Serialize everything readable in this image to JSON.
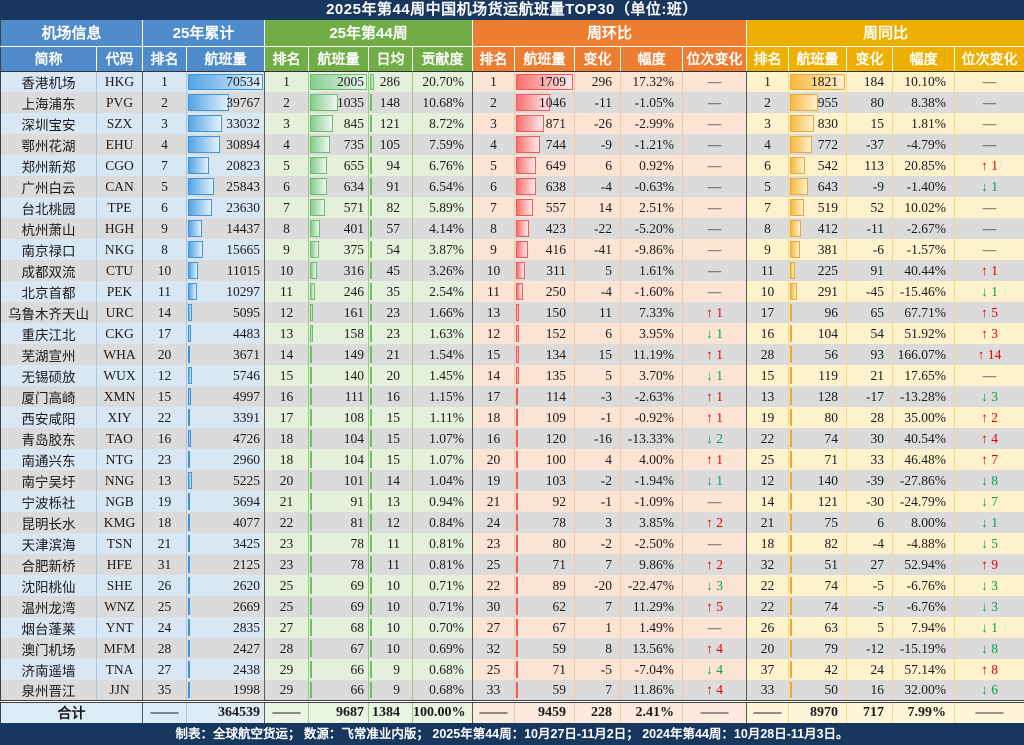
{
  "title": "2025年第44周中国机场货运航班量TOP30（单位:班）",
  "header": {
    "sections": [
      {
        "id": "airport-info",
        "label": "机场信息"
      },
      {
        "id": "ytd-2025",
        "label": "25年累计"
      },
      {
        "id": "week-44",
        "label": "25年第44周"
      },
      {
        "id": "week-over-week",
        "label": "周环比"
      },
      {
        "id": "week-over-year",
        "label": "周同比"
      }
    ],
    "columns": [
      "简称",
      "代码",
      "排名",
      "航班量",
      "排名",
      "航班量",
      "日均",
      "贡献度",
      "排名",
      "航班量",
      "变化",
      "幅度",
      "位次变化",
      "排名",
      "航班量",
      "变化",
      "幅度",
      "位次变化"
    ]
  },
  "rows": [
    {
      "name": "香港机场",
      "code": "HKG",
      "cum_rank": "1",
      "cum_vol": 70534,
      "wk_rank": "1",
      "wk_vol": 2005,
      "daily": 286,
      "contrib": "20.70%",
      "wow_rank": "1",
      "wow_vol": 1709,
      "wow_chg": "296",
      "wow_pct": "17.32%",
      "wow_move": "—",
      "yoy_rank": "1",
      "yoy_vol": 1821,
      "yoy_chg": "184",
      "yoy_pct": "10.10%",
      "yoy_move": "—"
    },
    {
      "name": "上海浦东",
      "code": "PVG",
      "cum_rank": "2",
      "cum_vol": 39767,
      "wk_rank": "2",
      "wk_vol": 1035,
      "daily": 148,
      "contrib": "10.68%",
      "wow_rank": "2",
      "wow_vol": 1046,
      "wow_chg": "-11",
      "wow_pct": "-1.05%",
      "wow_move": "—",
      "yoy_rank": "2",
      "yoy_vol": 955,
      "yoy_chg": "80",
      "yoy_pct": "8.38%",
      "yoy_move": "—"
    },
    {
      "name": "深圳宝安",
      "code": "SZX",
      "cum_rank": "3",
      "cum_vol": 33032,
      "wk_rank": "3",
      "wk_vol": 845,
      "daily": 121,
      "contrib": "8.72%",
      "wow_rank": "3",
      "wow_vol": 871,
      "wow_chg": "-26",
      "wow_pct": "-2.99%",
      "wow_move": "—",
      "yoy_rank": "3",
      "yoy_vol": 830,
      "yoy_chg": "15",
      "yoy_pct": "1.81%",
      "yoy_move": "—"
    },
    {
      "name": "鄂州花湖",
      "code": "EHU",
      "cum_rank": "4",
      "cum_vol": 30894,
      "wk_rank": "4",
      "wk_vol": 735,
      "daily": 105,
      "contrib": "7.59%",
      "wow_rank": "4",
      "wow_vol": 744,
      "wow_chg": "-9",
      "wow_pct": "-1.21%",
      "wow_move": "—",
      "yoy_rank": "4",
      "yoy_vol": 772,
      "yoy_chg": "-37",
      "yoy_pct": "-4.79%",
      "yoy_move": "—"
    },
    {
      "name": "郑州新郑",
      "code": "CGO",
      "cum_rank": "7",
      "cum_vol": 20823,
      "wk_rank": "5",
      "wk_vol": 655,
      "daily": 94,
      "contrib": "6.76%",
      "wow_rank": "5",
      "wow_vol": 649,
      "wow_chg": "6",
      "wow_pct": "0.92%",
      "wow_move": "—",
      "yoy_rank": "6",
      "yoy_vol": 542,
      "yoy_chg": "113",
      "yoy_pct": "20.85%",
      "yoy_move": "↑ 1"
    },
    {
      "name": "广州白云",
      "code": "CAN",
      "cum_rank": "5",
      "cum_vol": 25843,
      "wk_rank": "6",
      "wk_vol": 634,
      "daily": 91,
      "contrib": "6.54%",
      "wow_rank": "6",
      "wow_vol": 638,
      "wow_chg": "-4",
      "wow_pct": "-0.63%",
      "wow_move": "—",
      "yoy_rank": "5",
      "yoy_vol": 643,
      "yoy_chg": "-9",
      "yoy_pct": "-1.40%",
      "yoy_move": "↓ 1"
    },
    {
      "name": "台北桃园",
      "code": "TPE",
      "cum_rank": "6",
      "cum_vol": 23630,
      "wk_rank": "7",
      "wk_vol": 571,
      "daily": 82,
      "contrib": "5.89%",
      "wow_rank": "7",
      "wow_vol": 557,
      "wow_chg": "14",
      "wow_pct": "2.51%",
      "wow_move": "—",
      "yoy_rank": "7",
      "yoy_vol": 519,
      "yoy_chg": "52",
      "yoy_pct": "10.02%",
      "yoy_move": "—"
    },
    {
      "name": "杭州萧山",
      "code": "HGH",
      "cum_rank": "9",
      "cum_vol": 14437,
      "wk_rank": "8",
      "wk_vol": 401,
      "daily": 57,
      "contrib": "4.14%",
      "wow_rank": "8",
      "wow_vol": 423,
      "wow_chg": "-22",
      "wow_pct": "-5.20%",
      "wow_move": "—",
      "yoy_rank": "8",
      "yoy_vol": 412,
      "yoy_chg": "-11",
      "yoy_pct": "-2.67%",
      "yoy_move": "—"
    },
    {
      "name": "南京禄口",
      "code": "NKG",
      "cum_rank": "8",
      "cum_vol": 15665,
      "wk_rank": "9",
      "wk_vol": 375,
      "daily": 54,
      "contrib": "3.87%",
      "wow_rank": "9",
      "wow_vol": 416,
      "wow_chg": "-41",
      "wow_pct": "-9.86%",
      "wow_move": "—",
      "yoy_rank": "9",
      "yoy_vol": 381,
      "yoy_chg": "-6",
      "yoy_pct": "-1.57%",
      "yoy_move": "—"
    },
    {
      "name": "成都双流",
      "code": "CTU",
      "cum_rank": "10",
      "cum_vol": 11015,
      "wk_rank": "10",
      "wk_vol": 316,
      "daily": 45,
      "contrib": "3.26%",
      "wow_rank": "10",
      "wow_vol": 311,
      "wow_chg": "5",
      "wow_pct": "1.61%",
      "wow_move": "—",
      "yoy_rank": "11",
      "yoy_vol": 225,
      "yoy_chg": "91",
      "yoy_pct": "40.44%",
      "yoy_move": "↑ 1"
    },
    {
      "name": "北京首都",
      "code": "PEK",
      "cum_rank": "11",
      "cum_vol": 10297,
      "wk_rank": "11",
      "wk_vol": 246,
      "daily": 35,
      "contrib": "2.54%",
      "wow_rank": "11",
      "wow_vol": 250,
      "wow_chg": "-4",
      "wow_pct": "-1.60%",
      "wow_move": "—",
      "yoy_rank": "10",
      "yoy_vol": 291,
      "yoy_chg": "-45",
      "yoy_pct": "-15.46%",
      "yoy_move": "↓ 1"
    },
    {
      "name": "乌鲁木齐天山",
      "code": "URC",
      "cum_rank": "14",
      "cum_vol": 5095,
      "wk_rank": "12",
      "wk_vol": 161,
      "daily": 23,
      "contrib": "1.66%",
      "wow_rank": "13",
      "wow_vol": 150,
      "wow_chg": "11",
      "wow_pct": "7.33%",
      "wow_move": "↑ 1",
      "yoy_rank": "17",
      "yoy_vol": 96,
      "yoy_chg": "65",
      "yoy_pct": "67.71%",
      "yoy_move": "↑ 5"
    },
    {
      "name": "重庆江北",
      "code": "CKG",
      "cum_rank": "17",
      "cum_vol": 4483,
      "wk_rank": "13",
      "wk_vol": 158,
      "daily": 23,
      "contrib": "1.63%",
      "wow_rank": "12",
      "wow_vol": 152,
      "wow_chg": "6",
      "wow_pct": "3.95%",
      "wow_move": "↓ 1",
      "yoy_rank": "16",
      "yoy_vol": 104,
      "yoy_chg": "54",
      "yoy_pct": "51.92%",
      "yoy_move": "↑ 3"
    },
    {
      "name": "芜湖宣州",
      "code": "WHA",
      "cum_rank": "20",
      "cum_vol": 3671,
      "wk_rank": "14",
      "wk_vol": 149,
      "daily": 21,
      "contrib": "1.54%",
      "wow_rank": "15",
      "wow_vol": 134,
      "wow_chg": "15",
      "wow_pct": "11.19%",
      "wow_move": "↑ 1",
      "yoy_rank": "28",
      "yoy_vol": 56,
      "yoy_chg": "93",
      "yoy_pct": "166.07%",
      "yoy_move": "↑ 14"
    },
    {
      "name": "无锡硕放",
      "code": "WUX",
      "cum_rank": "12",
      "cum_vol": 5746,
      "wk_rank": "15",
      "wk_vol": 140,
      "daily": 20,
      "contrib": "1.45%",
      "wow_rank": "14",
      "wow_vol": 135,
      "wow_chg": "5",
      "wow_pct": "3.70%",
      "wow_move": "↓ 1",
      "yoy_rank": "15",
      "yoy_vol": 119,
      "yoy_chg": "21",
      "yoy_pct": "17.65%",
      "yoy_move": "—"
    },
    {
      "name": "厦门高崎",
      "code": "XMN",
      "cum_rank": "15",
      "cum_vol": 4997,
      "wk_rank": "16",
      "wk_vol": 111,
      "daily": 16,
      "contrib": "1.15%",
      "wow_rank": "17",
      "wow_vol": 114,
      "wow_chg": "-3",
      "wow_pct": "-2.63%",
      "wow_move": "↑ 1",
      "yoy_rank": "13",
      "yoy_vol": 128,
      "yoy_chg": "-17",
      "yoy_pct": "-13.28%",
      "yoy_move": "↓ 3"
    },
    {
      "name": "西安咸阳",
      "code": "XIY",
      "cum_rank": "22",
      "cum_vol": 3391,
      "wk_rank": "17",
      "wk_vol": 108,
      "daily": 15,
      "contrib": "1.11%",
      "wow_rank": "18",
      "wow_vol": 109,
      "wow_chg": "-1",
      "wow_pct": "-0.92%",
      "wow_move": "↑ 1",
      "yoy_rank": "19",
      "yoy_vol": 80,
      "yoy_chg": "28",
      "yoy_pct": "35.00%",
      "yoy_move": "↑ 2"
    },
    {
      "name": "青岛胶东",
      "code": "TAO",
      "cum_rank": "16",
      "cum_vol": 4726,
      "wk_rank": "18",
      "wk_vol": 104,
      "daily": 15,
      "contrib": "1.07%",
      "wow_rank": "16",
      "wow_vol": 120,
      "wow_chg": "-16",
      "wow_pct": "-13.33%",
      "wow_move": "↓ 2",
      "yoy_rank": "22",
      "yoy_vol": 74,
      "yoy_chg": "30",
      "yoy_pct": "40.54%",
      "yoy_move": "↑ 4"
    },
    {
      "name": "南通兴东",
      "code": "NTG",
      "cum_rank": "23",
      "cum_vol": 2960,
      "wk_rank": "18",
      "wk_vol": 104,
      "daily": 15,
      "contrib": "1.07%",
      "wow_rank": "20",
      "wow_vol": 100,
      "wow_chg": "4",
      "wow_pct": "4.00%",
      "wow_move": "↑ 1",
      "yoy_rank": "25",
      "yoy_vol": 71,
      "yoy_chg": "33",
      "yoy_pct": "46.48%",
      "yoy_move": "↑ 7"
    },
    {
      "name": "南宁吴圩",
      "code": "NNG",
      "cum_rank": "13",
      "cum_vol": 5225,
      "wk_rank": "20",
      "wk_vol": 101,
      "daily": 14,
      "contrib": "1.04%",
      "wow_rank": "19",
      "wow_vol": 103,
      "wow_chg": "-2",
      "wow_pct": "-1.94%",
      "wow_move": "↓ 1",
      "yoy_rank": "12",
      "yoy_vol": 140,
      "yoy_chg": "-39",
      "yoy_pct": "-27.86%",
      "yoy_move": "↓ 8"
    },
    {
      "name": "宁波栎社",
      "code": "NGB",
      "cum_rank": "19",
      "cum_vol": 3694,
      "wk_rank": "21",
      "wk_vol": 91,
      "daily": 13,
      "contrib": "0.94%",
      "wow_rank": "21",
      "wow_vol": 92,
      "wow_chg": "-1",
      "wow_pct": "-1.09%",
      "wow_move": "—",
      "yoy_rank": "14",
      "yoy_vol": 121,
      "yoy_chg": "-30",
      "yoy_pct": "-24.79%",
      "yoy_move": "↓ 7"
    },
    {
      "name": "昆明长水",
      "code": "KMG",
      "cum_rank": "18",
      "cum_vol": 4077,
      "wk_rank": "22",
      "wk_vol": 81,
      "daily": 12,
      "contrib": "0.84%",
      "wow_rank": "24",
      "wow_vol": 78,
      "wow_chg": "3",
      "wow_pct": "3.85%",
      "wow_move": "↑ 2",
      "yoy_rank": "21",
      "yoy_vol": 75,
      "yoy_chg": "6",
      "yoy_pct": "8.00%",
      "yoy_move": "↓ 1"
    },
    {
      "name": "天津滨海",
      "code": "TSN",
      "cum_rank": "21",
      "cum_vol": 3425,
      "wk_rank": "23",
      "wk_vol": 78,
      "daily": 11,
      "contrib": "0.81%",
      "wow_rank": "23",
      "wow_vol": 80,
      "wow_chg": "-2",
      "wow_pct": "-2.50%",
      "wow_move": "—",
      "yoy_rank": "18",
      "yoy_vol": 82,
      "yoy_chg": "-4",
      "yoy_pct": "-4.88%",
      "yoy_move": "↓ 5"
    },
    {
      "name": "合肥新桥",
      "code": "HFE",
      "cum_rank": "31",
      "cum_vol": 2125,
      "wk_rank": "23",
      "wk_vol": 78,
      "daily": 11,
      "contrib": "0.81%",
      "wow_rank": "25",
      "wow_vol": 71,
      "wow_chg": "7",
      "wow_pct": "9.86%",
      "wow_move": "↑ 2",
      "yoy_rank": "32",
      "yoy_vol": 51,
      "yoy_chg": "27",
      "yoy_pct": "52.94%",
      "yoy_move": "↑ 9"
    },
    {
      "name": "沈阳桃仙",
      "code": "SHE",
      "cum_rank": "26",
      "cum_vol": 2620,
      "wk_rank": "25",
      "wk_vol": 69,
      "daily": 10,
      "contrib": "0.71%",
      "wow_rank": "22",
      "wow_vol": 89,
      "wow_chg": "-20",
      "wow_pct": "-22.47%",
      "wow_move": "↓ 3",
      "yoy_rank": "22",
      "yoy_vol": 74,
      "yoy_chg": "-5",
      "yoy_pct": "-6.76%",
      "yoy_move": "↓ 3"
    },
    {
      "name": "温州龙湾",
      "code": "WNZ",
      "cum_rank": "25",
      "cum_vol": 2669,
      "wk_rank": "25",
      "wk_vol": 69,
      "daily": 10,
      "contrib": "0.71%",
      "wow_rank": "30",
      "wow_vol": 62,
      "wow_chg": "7",
      "wow_pct": "11.29%",
      "wow_move": "↑ 5",
      "yoy_rank": "22",
      "yoy_vol": 74,
      "yoy_chg": "-5",
      "yoy_pct": "-6.76%",
      "yoy_move": "↓ 3"
    },
    {
      "name": "烟台蓬莱",
      "code": "YNT",
      "cum_rank": "24",
      "cum_vol": 2835,
      "wk_rank": "27",
      "wk_vol": 68,
      "daily": 10,
      "contrib": "0.70%",
      "wow_rank": "27",
      "wow_vol": 67,
      "wow_chg": "1",
      "wow_pct": "1.49%",
      "wow_move": "—",
      "yoy_rank": "26",
      "yoy_vol": 63,
      "yoy_chg": "5",
      "yoy_pct": "7.94%",
      "yoy_move": "↓ 1"
    },
    {
      "name": "澳门机场",
      "code": "MFM",
      "cum_rank": "28",
      "cum_vol": 2427,
      "wk_rank": "28",
      "wk_vol": 67,
      "daily": 10,
      "contrib": "0.69%",
      "wow_rank": "32",
      "wow_vol": 59,
      "wow_chg": "8",
      "wow_pct": "13.56%",
      "wow_move": "↑ 4",
      "yoy_rank": "20",
      "yoy_vol": 79,
      "yoy_chg": "-12",
      "yoy_pct": "-15.19%",
      "yoy_move": "↓ 8"
    },
    {
      "name": "济南遥墙",
      "code": "TNA",
      "cum_rank": "27",
      "cum_vol": 2438,
      "wk_rank": "29",
      "wk_vol": 66,
      "daily": 9,
      "contrib": "0.68%",
      "wow_rank": "25",
      "wow_vol": 71,
      "wow_chg": "-5",
      "wow_pct": "-7.04%",
      "wow_move": "↓ 4",
      "yoy_rank": "37",
      "yoy_vol": 42,
      "yoy_chg": "24",
      "yoy_pct": "57.14%",
      "yoy_move": "↑ 8"
    },
    {
      "name": "泉州晋江",
      "code": "JJN",
      "cum_rank": "35",
      "cum_vol": 1998,
      "wk_rank": "29",
      "wk_vol": 66,
      "daily": 9,
      "contrib": "0.68%",
      "wow_rank": "33",
      "wow_vol": 59,
      "wow_chg": "7",
      "wow_pct": "11.86%",
      "wow_move": "↑ 4",
      "yoy_rank": "33",
      "yoy_vol": 50,
      "yoy_chg": "16",
      "yoy_pct": "32.00%",
      "yoy_move": "↓ 6"
    }
  ],
  "total": {
    "label": "合计",
    "cum_rank": "——",
    "cum_vol": "364539",
    "wk_rank": "——",
    "wk_vol": "9687",
    "daily": "1384",
    "contrib": "100.00%",
    "wow_rank": "——",
    "wow_vol": "9459",
    "wow_chg": "228",
    "wow_pct": "2.41%",
    "wow_move": "——",
    "yoy_rank": "——",
    "yoy_vol": "8970",
    "yoy_chg": "717",
    "yoy_pct": "7.99%",
    "yoy_move": "——"
  },
  "footer": "制表：全球航空货运；  数源：飞常准业内版；  2025年第44周：10月27日-11月2日；  2024年第44周：10月28日-11月3日。",
  "colors": {
    "title_bg": "#17375E",
    "header_blue": "#4E8BC8",
    "header_green": "#70AD47",
    "header_orange": "#ED7D31",
    "header_gold": "#EFAF00",
    "up_red": "#E80000",
    "down_green": "#00A550",
    "bar_blue": "#54A4E4",
    "bar_green": "#86CC8E",
    "bar_red": "#F87070",
    "bar_gold": "#F7B93F"
  }
}
